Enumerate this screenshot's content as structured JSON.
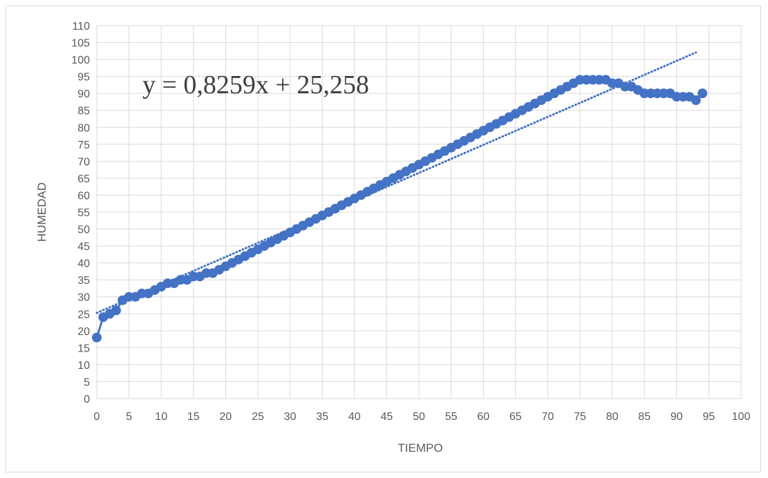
{
  "chart_data": {
    "type": "scatter",
    "title": "",
    "xlabel": "TIEMPO",
    "ylabel": "HUMEDAD",
    "xlim": [
      0,
      100
    ],
    "ylim": [
      0,
      110
    ],
    "x_ticks": [
      "0",
      "5",
      "10",
      "15",
      "20",
      "25",
      "30",
      "35",
      "40",
      "45",
      "50",
      "55",
      "60",
      "65",
      "70",
      "75",
      "80",
      "85",
      "90",
      "95",
      "100"
    ],
    "y_ticks": [
      "0",
      "5",
      "10",
      "15",
      "20",
      "25",
      "30",
      "35",
      "40",
      "45",
      "50",
      "55",
      "60",
      "65",
      "70",
      "75",
      "80",
      "85",
      "90",
      "95",
      "100",
      "105",
      "110"
    ],
    "grid": "both",
    "legend": "none",
    "series": [
      {
        "color": "#4472C4",
        "x": [
          0,
          1,
          2,
          3,
          4,
          5,
          6,
          7,
          8,
          9,
          10,
          11,
          12,
          13,
          14,
          15,
          16,
          17,
          18,
          19,
          20,
          21,
          22,
          23,
          24,
          25,
          26,
          27,
          28,
          29,
          30,
          31,
          32,
          33,
          34,
          35,
          36,
          37,
          38,
          39,
          40,
          41,
          42,
          43,
          44,
          45,
          46,
          47,
          48,
          49,
          50,
          51,
          52,
          53,
          54,
          55,
          56,
          57,
          58,
          59,
          60,
          61,
          62,
          63,
          64,
          65,
          66,
          67,
          68,
          69,
          70,
          71,
          72,
          73,
          74,
          75,
          76,
          77,
          78,
          79,
          80,
          81,
          82,
          83,
          84,
          85,
          86,
          87,
          88,
          89,
          90,
          91,
          92,
          93,
          94
        ],
        "y": [
          18,
          24,
          25,
          26,
          29,
          30,
          30,
          31,
          31,
          32,
          33,
          34,
          34,
          35,
          35,
          36,
          36,
          37,
          37,
          38,
          39,
          40,
          41,
          42,
          43,
          44,
          45,
          46,
          47,
          48,
          49,
          50,
          51,
          52,
          53,
          54,
          55,
          56,
          57,
          58,
          59,
          60,
          61,
          62,
          63,
          64,
          65,
          66,
          67,
          68,
          69,
          70,
          71,
          72,
          73,
          74,
          75,
          76,
          77,
          78,
          79,
          80,
          81,
          82,
          83,
          84,
          85,
          86,
          87,
          88,
          89,
          90,
          91,
          92,
          93,
          94,
          94,
          94,
          94,
          94,
          93,
          93,
          92,
          92,
          91,
          90,
          90,
          90,
          90,
          90,
          89,
          89,
          89,
          88,
          90
        ]
      }
    ],
    "trendline": {
      "type": "linear",
      "slope": 0.8259,
      "intercept": 25.258,
      "x_range": [
        0,
        93
      ],
      "color": "#4472C4",
      "style": "dotted",
      "equation_label": "y = 0,8259x + 25,258"
    }
  }
}
